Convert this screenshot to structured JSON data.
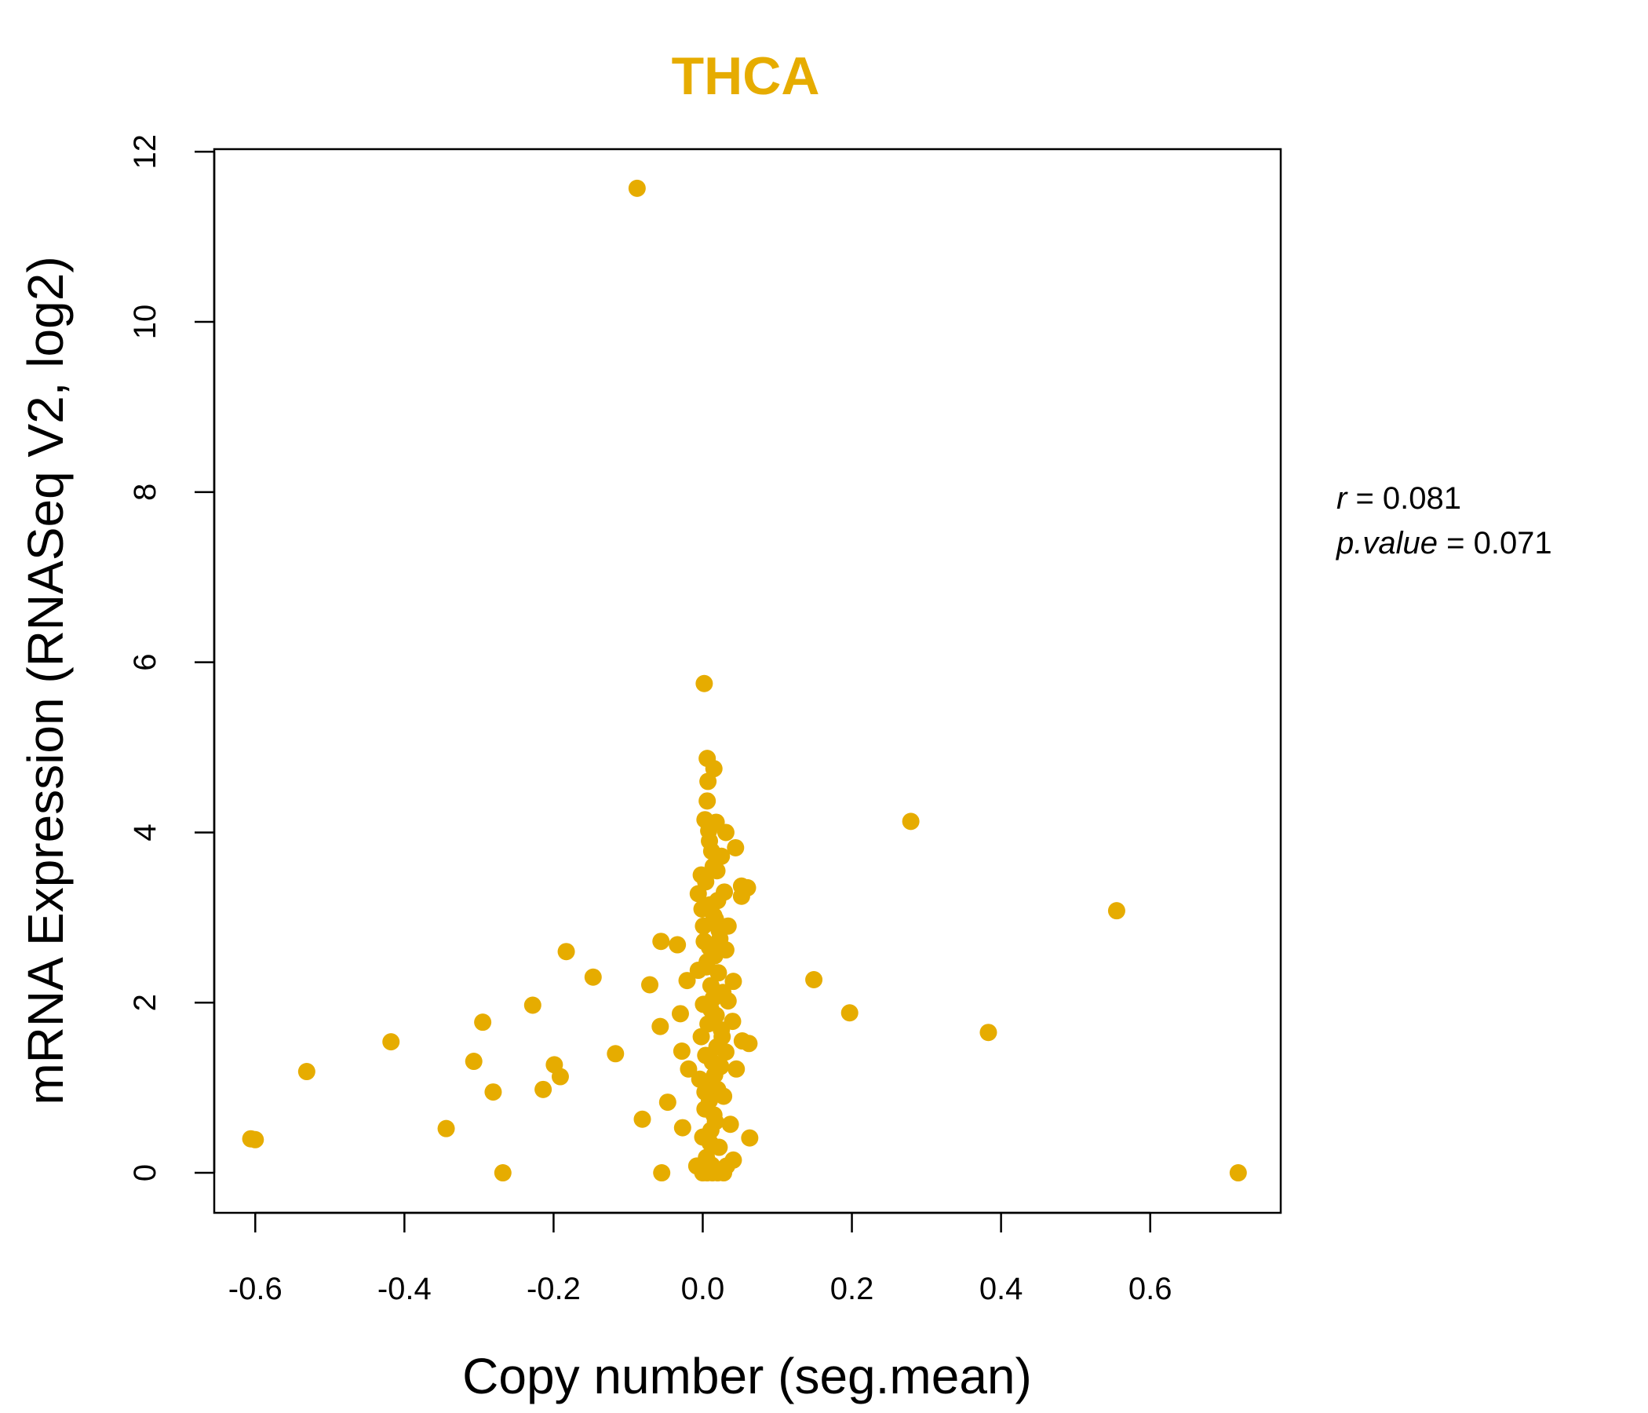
{
  "chart_data": {
    "type": "scatter",
    "title": "THCA",
    "title_color": "#E6AC00",
    "point_color": "#E6AC00",
    "xlabel": "Copy number (seg.mean)",
    "ylabel": "mRNA Expression (RNASeq V2, log2)",
    "xlim": [
      -0.655,
      0.775
    ],
    "ylim": [
      -0.47,
      12.03
    ],
    "xticks": [
      -0.6,
      -0.4,
      -0.2,
      0.0,
      0.2,
      0.4,
      0.6
    ],
    "xtick_labels": [
      "-0.6",
      "-0.4",
      "-0.2",
      "0.0",
      "0.2",
      "0.4",
      "0.6"
    ],
    "yticks": [
      0,
      2,
      4,
      6,
      8,
      10,
      12
    ],
    "ytick_labels": [
      "0",
      "2",
      "4",
      "6",
      "8",
      "10",
      "12"
    ],
    "grid": false,
    "legend": "none",
    "stats": {
      "r_label": "r",
      "r_value": "0.081",
      "p_label": "p.value",
      "p_value": "0.071"
    },
    "points": [
      [
        -0.088,
        11.57
      ],
      [
        0.002,
        5.75
      ],
      [
        0.279,
        4.13
      ],
      [
        0.555,
        3.08
      ],
      [
        0.718,
        0.0
      ],
      [
        0.383,
        1.65
      ],
      [
        0.197,
        1.88
      ],
      [
        0.149,
        2.27
      ],
      [
        -0.606,
        0.4
      ],
      [
        -0.6,
        0.39
      ],
      [
        -0.531,
        1.19
      ],
      [
        -0.418,
        1.54
      ],
      [
        -0.344,
        0.52
      ],
      [
        -0.307,
        1.31
      ],
      [
        -0.295,
        1.77
      ],
      [
        -0.281,
        0.95
      ],
      [
        -0.268,
        0.0
      ],
      [
        -0.228,
        1.97
      ],
      [
        -0.214,
        0.98
      ],
      [
        -0.199,
        1.27
      ],
      [
        -0.191,
        1.13
      ],
      [
        -0.183,
        2.6
      ],
      [
        -0.147,
        2.3
      ],
      [
        -0.117,
        1.4
      ],
      [
        -0.081,
        0.63
      ],
      [
        -0.071,
        2.21
      ],
      [
        -0.056,
        2.72
      ],
      [
        -0.055,
        0.0
      ],
      [
        -0.057,
        1.72
      ],
      [
        -0.047,
        0.83
      ],
      [
        -0.034,
        2.68
      ],
      [
        -0.03,
        1.87
      ],
      [
        -0.028,
        1.43
      ],
      [
        -0.027,
        0.53
      ],
      [
        -0.021,
        2.26
      ],
      [
        -0.019,
        1.22
      ],
      [
        0.006,
        4.87
      ],
      [
        0.015,
        4.75
      ],
      [
        0.007,
        4.6
      ],
      [
        0.006,
        4.37
      ],
      [
        0.003,
        4.15
      ],
      [
        0.018,
        4.12
      ],
      [
        0.031,
        4.0
      ],
      [
        0.044,
        3.82
      ],
      [
        0.009,
        3.9
      ],
      [
        0.025,
        3.72
      ],
      [
        -0.002,
        3.5
      ],
      [
        0.014,
        3.6
      ],
      [
        0.052,
        3.37
      ],
      [
        0.06,
        3.35
      ],
      [
        0.052,
        3.25
      ],
      [
        0.029,
        3.3
      ],
      [
        -0.006,
        3.28
      ],
      [
        -0.001,
        3.1
      ],
      [
        0.01,
        3.15
      ],
      [
        0.034,
        2.9
      ],
      [
        0.022,
        2.85
      ],
      [
        0.002,
        2.72
      ],
      [
        0.031,
        2.62
      ],
      [
        0.016,
        2.55
      ],
      [
        0.005,
        2.42
      ],
      [
        0.041,
        2.25
      ],
      [
        -0.006,
        2.38
      ],
      [
        0.027,
        2.12
      ],
      [
        0.011,
        2.2
      ],
      [
        0.034,
        2.02
      ],
      [
        0.001,
        1.98
      ],
      [
        0.018,
        1.85
      ],
      [
        0.04,
        1.78
      ],
      [
        0.053,
        1.55
      ],
      [
        0.062,
        1.52
      ],
      [
        -0.002,
        1.6
      ],
      [
        0.025,
        1.68
      ],
      [
        0.031,
        1.42
      ],
      [
        0.045,
        1.22
      ],
      [
        0.013,
        1.3
      ],
      [
        -0.004,
        1.1
      ],
      [
        0.02,
        0.98
      ],
      [
        0.009,
        0.85
      ],
      [
        0.028,
        0.9
      ],
      [
        0.003,
        0.75
      ],
      [
        0.015,
        0.68
      ],
      [
        0.037,
        0.57
      ],
      [
        0.063,
        0.41
      ],
      [
        0.011,
        0.5
      ],
      [
        0.0,
        0.42
      ],
      [
        0.022,
        0.3
      ],
      [
        0.041,
        0.15
      ],
      [
        0.032,
        0.08
      ],
      [
        0.005,
        0.18
      ],
      [
        -0.008,
        0.08
      ],
      [
        0.0,
        0.0
      ],
      [
        0.006,
        0.0
      ],
      [
        0.013,
        0.0
      ],
      [
        0.02,
        0.0
      ],
      [
        0.028,
        0.0
      ],
      [
        0.012,
        0.09
      ],
      [
        0.008,
        1.05
      ],
      [
        0.016,
        1.15
      ],
      [
        0.004,
        1.38
      ],
      [
        0.019,
        1.48
      ],
      [
        0.007,
        1.75
      ],
      [
        0.014,
        2.05
      ],
      [
        0.021,
        2.35
      ],
      [
        0.009,
        2.65
      ],
      [
        0.017,
        2.98
      ],
      [
        0.004,
        3.42
      ],
      [
        0.019,
        3.55
      ],
      [
        0.012,
        3.78
      ],
      [
        0.008,
        4.02
      ],
      [
        0.02,
        3.2
      ],
      [
        0.001,
        2.9
      ],
      [
        0.023,
        2.75
      ],
      [
        0.011,
        1.92
      ],
      [
        0.026,
        1.6
      ],
      [
        0.003,
        0.95
      ],
      [
        0.017,
        0.6
      ],
      [
        0.01,
        0.35
      ],
      [
        0.024,
        1.25
      ],
      [
        0.006,
        2.48
      ],
      [
        0.015,
        3.02
      ]
    ]
  }
}
